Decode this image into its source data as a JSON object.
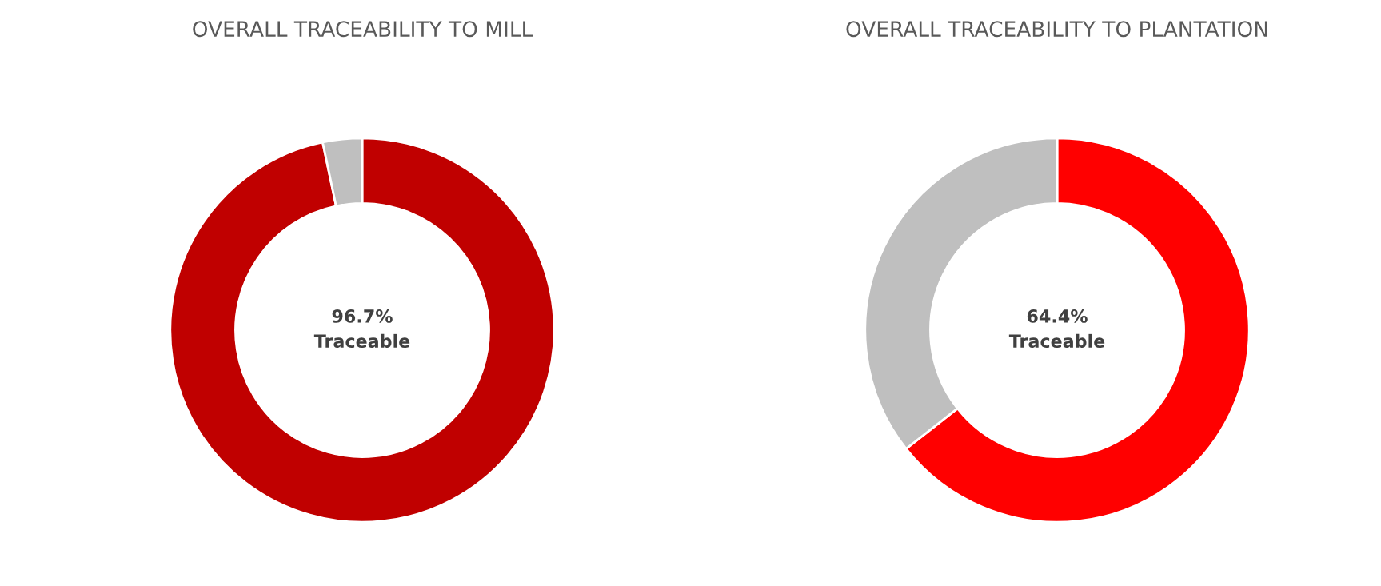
{
  "chart_data": [
    {
      "type": "donut",
      "title": "OVERALL TRACEABILITY TO MILL",
      "categories": [
        null,
        null
      ],
      "values": [
        96.7,
        3.3
      ],
      "colors": [
        "#c00000",
        "#bfbfbf"
      ],
      "annotations": [
        "96.7%",
        "Traceable"
      ]
    },
    {
      "type": "donut",
      "title": "OVERALL TRACEABILITY TO PLANTATION",
      "categories": [
        null,
        null
      ],
      "values": [
        64.4,
        35.6
      ],
      "colors": [
        "#ff0000",
        "#bfbfbf"
      ],
      "annotations": [
        "64.4%",
        "Traceable"
      ]
    }
  ]
}
